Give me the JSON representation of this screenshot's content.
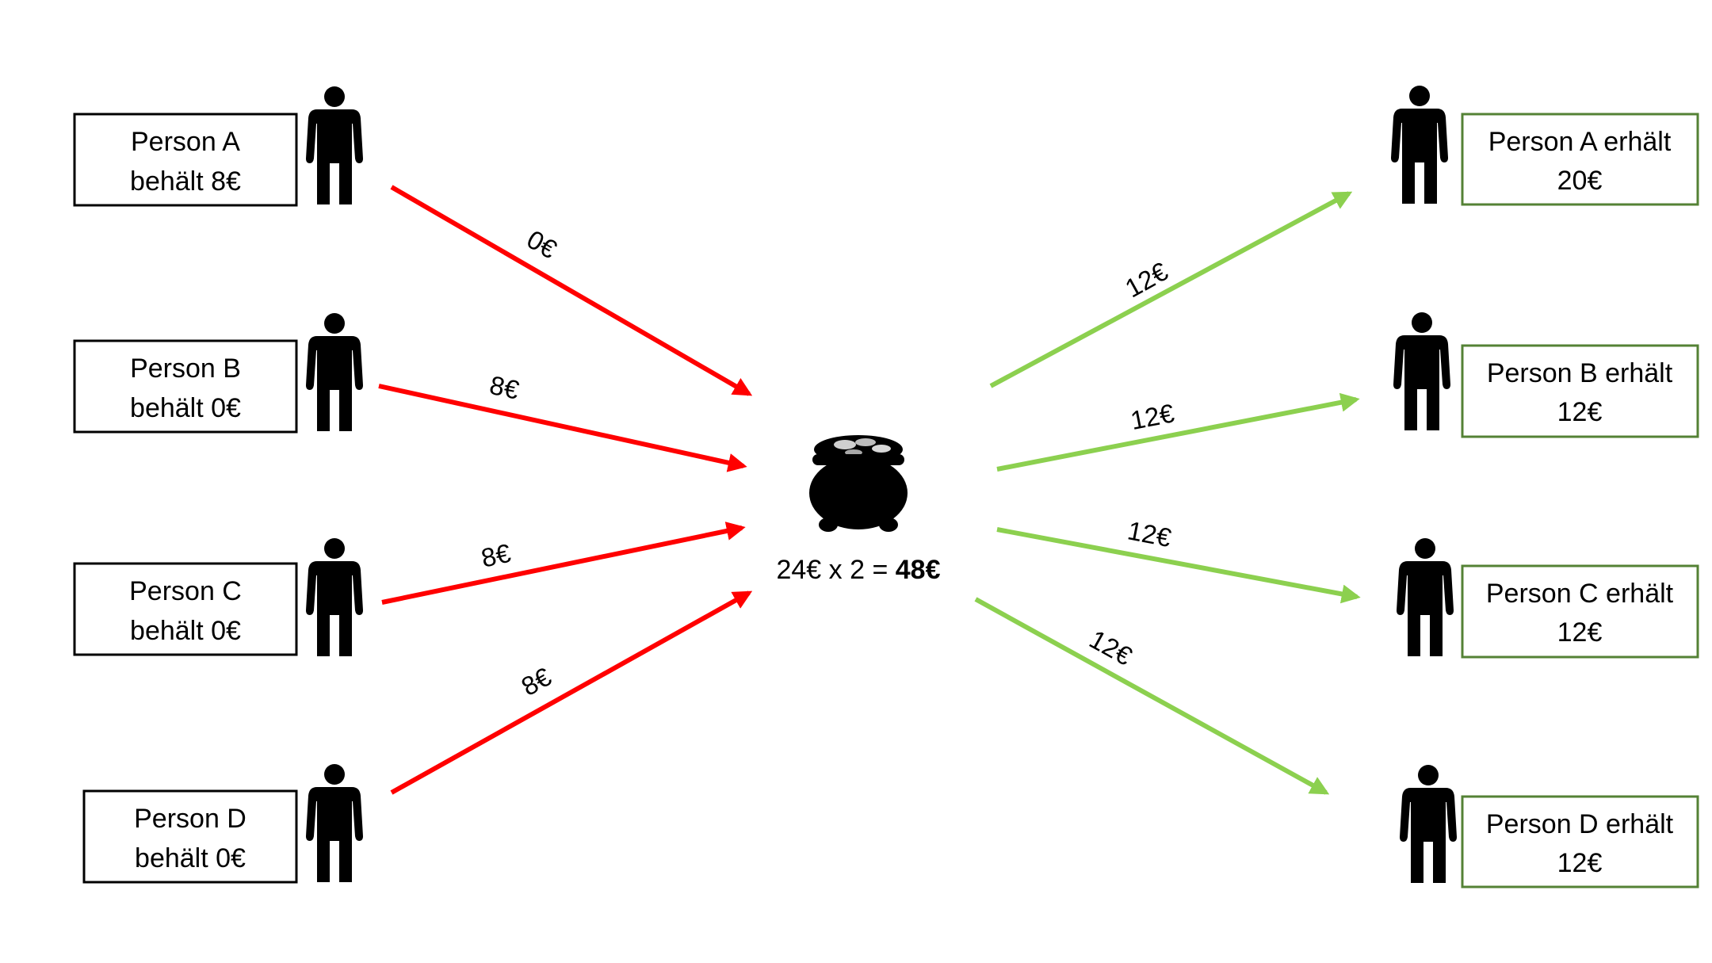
{
  "colors": {
    "contribution_arrow": "#ff0000",
    "payout_arrow": "#8cd04f",
    "left_box_border": "#000000",
    "right_box_border": "#548235",
    "figure": "#000000"
  },
  "icons": {
    "person": "person-icon",
    "pot": "pot-of-gold-icon"
  },
  "left_boxes": [
    {
      "name": "Person A",
      "keeps": "behält 8€"
    },
    {
      "name": "Person B",
      "keeps": "behält 0€"
    },
    {
      "name": "Person C",
      "keeps": "behält 0€"
    },
    {
      "name": "Person D",
      "keeps": "behält 0€"
    }
  ],
  "contributions": [
    "0€",
    "8€",
    "8€",
    "8€"
  ],
  "pot": {
    "formula": "24€ x 2 = ",
    "total": "48€"
  },
  "payouts": [
    "12€",
    "12€",
    "12€",
    "12€"
  ],
  "right_boxes": [
    {
      "name": "Person A erhält",
      "amount": "20€"
    },
    {
      "name": "Person B erhält",
      "amount": "12€"
    },
    {
      "name": "Person C erhält",
      "amount": "12€"
    },
    {
      "name": "Person D erhält",
      "amount": "12€"
    }
  ]
}
